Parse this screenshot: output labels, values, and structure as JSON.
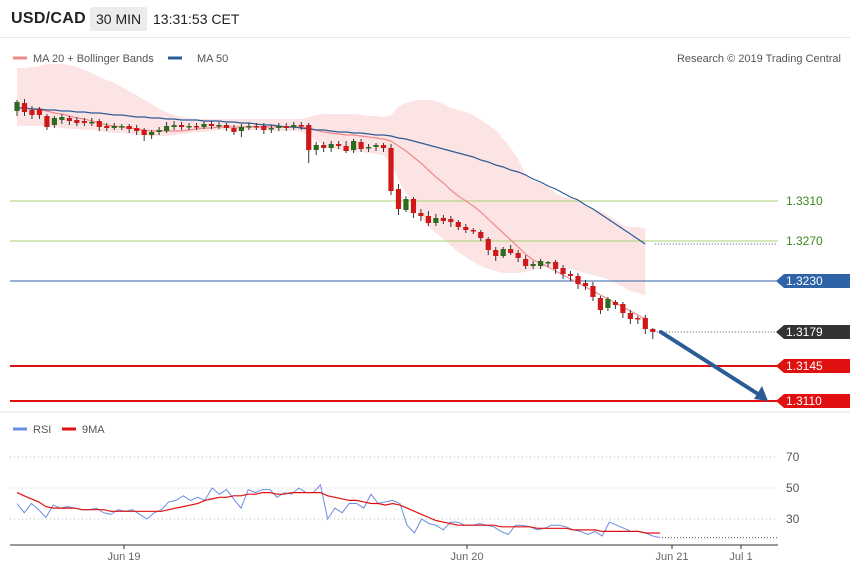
{
  "header": {
    "symbol": "USD/CAD",
    "interval": "30 MIN",
    "time": "13:31:53 CET"
  },
  "colors": {
    "bull": "#2e6b1f",
    "bear": "#d01818",
    "ma20": "#f08a8a",
    "band": "#fde4e4",
    "ma50": "#2c5b99",
    "resistance": "#a8cf72",
    "pivot": "#2e63a8",
    "support": "#e01010",
    "current": "#333333",
    "rsi": "#6a8ee0",
    "rsi_ma": "#e01010",
    "arrow": "#2b5c98"
  },
  "icons": {
    "ma20_legend": "salmon-line-icon",
    "ma50_legend": "blue-line-icon",
    "rsi_legend": "blue-line-icon",
    "rsi_ma_legend": "red-line-icon"
  },
  "chart_data": [
    {
      "type": "candlestick",
      "legend": [
        {
          "name": "MA 20 + Bollinger Bands"
        },
        {
          "name": "MA 50"
        }
      ],
      "credit": "Research © 2019 Trading Central",
      "levels": [
        {
          "value": 1.331,
          "label": "1.3310",
          "kind": "resistance"
        },
        {
          "value": 1.327,
          "label": "1.3270",
          "kind": "resistance"
        },
        {
          "value": 1.323,
          "label": "1.3230",
          "kind": "pivot"
        },
        {
          "value": 1.3179,
          "label": "1.3179",
          "kind": "current"
        },
        {
          "value": 1.3145,
          "label": "1.3145",
          "kind": "support"
        },
        {
          "value": 1.311,
          "label": "1.3110",
          "kind": "support"
        }
      ],
      "x_labels": [
        "Jun 19",
        "Jun 20",
        "Jun 21",
        "Jul 1"
      ],
      "projection": {
        "from": 1.3179,
        "to": 1.311
      },
      "candles": [
        [
          1.34,
          1.3409,
          1.3395,
          1.3411
        ],
        [
          1.3408,
          1.3399,
          1.3395,
          1.3412
        ],
        [
          1.3401,
          1.3396,
          1.3392,
          1.3405
        ],
        [
          1.3402,
          1.3396,
          1.3392,
          1.3404
        ],
        [
          1.3395,
          1.3384,
          1.3381,
          1.3397
        ],
        [
          1.3386,
          1.3393,
          1.3383,
          1.3395
        ],
        [
          1.3391,
          1.3394,
          1.3387,
          1.3397
        ],
        [
          1.3393,
          1.339,
          1.3386,
          1.3395
        ],
        [
          1.3391,
          1.3388,
          1.3385,
          1.3394
        ],
        [
          1.339,
          1.3388,
          1.3385,
          1.3393
        ],
        [
          1.3388,
          1.3389,
          1.3385,
          1.3393
        ],
        [
          1.339,
          1.3384,
          1.338,
          1.3392
        ],
        [
          1.3385,
          1.3383,
          1.338,
          1.3388
        ],
        [
          1.3383,
          1.3385,
          1.3381,
          1.3388
        ],
        [
          1.3384,
          1.3385,
          1.3381,
          1.3387
        ],
        [
          1.3385,
          1.3382,
          1.3378,
          1.3387
        ],
        [
          1.3383,
          1.338,
          1.3376,
          1.3386
        ],
        [
          1.3381,
          1.3376,
          1.337,
          1.3383
        ],
        [
          1.3376,
          1.3379,
          1.3372,
          1.3381
        ],
        [
          1.3379,
          1.3381,
          1.3376,
          1.3384
        ],
        [
          1.338,
          1.3385,
          1.3378,
          1.3389
        ],
        [
          1.3384,
          1.3386,
          1.3381,
          1.339
        ],
        [
          1.3386,
          1.3384,
          1.3381,
          1.3389
        ],
        [
          1.3384,
          1.3385,
          1.3381,
          1.3388
        ],
        [
          1.3385,
          1.3384,
          1.3381,
          1.3388
        ],
        [
          1.3384,
          1.3387,
          1.3382,
          1.339
        ],
        [
          1.3387,
          1.3385,
          1.3382,
          1.339
        ],
        [
          1.3385,
          1.3386,
          1.3382,
          1.3389
        ],
        [
          1.3386,
          1.3383,
          1.338,
          1.3388
        ],
        [
          1.3383,
          1.3379,
          1.3376,
          1.3386
        ],
        [
          1.338,
          1.3384,
          1.3374,
          1.3387
        ],
        [
          1.3384,
          1.3385,
          1.3381,
          1.3388
        ],
        [
          1.3385,
          1.3384,
          1.3381,
          1.3388
        ],
        [
          1.3385,
          1.3381,
          1.3377,
          1.3388
        ],
        [
          1.3382,
          1.3383,
          1.3378,
          1.3386
        ],
        [
          1.3383,
          1.3385,
          1.338,
          1.3388
        ],
        [
          1.3385,
          1.3383,
          1.338,
          1.3388
        ],
        [
          1.3384,
          1.3386,
          1.3381,
          1.3389
        ],
        [
          1.3386,
          1.3385,
          1.3381,
          1.3389
        ],
        [
          1.3386,
          1.3361,
          1.3348,
          1.3388
        ],
        [
          1.3361,
          1.3366,
          1.3356,
          1.3369
        ],
        [
          1.3366,
          1.3363,
          1.3359,
          1.3369
        ],
        [
          1.3363,
          1.3367,
          1.3359,
          1.337
        ],
        [
          1.3367,
          1.3365,
          1.3362,
          1.337
        ],
        [
          1.3365,
          1.336,
          1.3358,
          1.337
        ],
        [
          1.3361,
          1.337,
          1.3358,
          1.3372
        ],
        [
          1.3369,
          1.3362,
          1.3359,
          1.3372
        ],
        [
          1.3363,
          1.3364,
          1.3359,
          1.3367
        ],
        [
          1.3364,
          1.3366,
          1.336,
          1.3368
        ],
        [
          1.3366,
          1.3363,
          1.3359,
          1.3368
        ],
        [
          1.3363,
          1.332,
          1.3316,
          1.3367
        ],
        [
          1.3322,
          1.3302,
          1.3296,
          1.3327
        ],
        [
          1.3301,
          1.3312,
          1.3299,
          1.3315
        ],
        [
          1.3312,
          1.3298,
          1.3293,
          1.3314
        ],
        [
          1.3298,
          1.3295,
          1.329,
          1.3302
        ],
        [
          1.3295,
          1.3288,
          1.3285,
          1.33
        ],
        [
          1.3288,
          1.3293,
          1.3285,
          1.3297
        ],
        [
          1.3293,
          1.329,
          1.3287,
          1.3296
        ],
        [
          1.3292,
          1.3289,
          1.3284,
          1.3295
        ],
        [
          1.3289,
          1.3284,
          1.3281,
          1.3291
        ],
        [
          1.3284,
          1.3281,
          1.3278,
          1.3287
        ],
        [
          1.3281,
          1.328,
          1.3277,
          1.3283
        ],
        [
          1.3279,
          1.3273,
          1.327,
          1.3281
        ],
        [
          1.3272,
          1.3261,
          1.3256,
          1.3274
        ],
        [
          1.3261,
          1.3255,
          1.325,
          1.3264
        ],
        [
          1.3255,
          1.3262,
          1.3253,
          1.3264
        ],
        [
          1.3262,
          1.3258,
          1.3256,
          1.3266
        ],
        [
          1.3258,
          1.3253,
          1.3249,
          1.3261
        ],
        [
          1.3252,
          1.3245,
          1.3242,
          1.3256
        ],
        [
          1.3245,
          1.3247,
          1.3242,
          1.325
        ],
        [
          1.3245,
          1.325,
          1.3242,
          1.3252
        ],
        [
          1.3248,
          1.3249,
          1.3244,
          1.325
        ],
        [
          1.3249,
          1.3242,
          1.3237,
          1.3251
        ],
        [
          1.3243,
          1.3237,
          1.3232,
          1.3246
        ],
        [
          1.3237,
          1.3235,
          1.323,
          1.324
        ],
        [
          1.3235,
          1.3227,
          1.3222,
          1.3238
        ],
        [
          1.3228,
          1.3225,
          1.3221,
          1.3231
        ],
        [
          1.3225,
          1.3214,
          1.321,
          1.3229
        ],
        [
          1.3213,
          1.3201,
          1.3197,
          1.3215
        ],
        [
          1.3203,
          1.3212,
          1.32,
          1.3214
        ],
        [
          1.3209,
          1.3206,
          1.3202,
          1.3211
        ],
        [
          1.3207,
          1.3198,
          1.3193,
          1.3209
        ],
        [
          1.3198,
          1.3192,
          1.3187,
          1.3201
        ],
        [
          1.3193,
          1.3192,
          1.3187,
          1.3195
        ],
        [
          1.3193,
          1.3182,
          1.3177,
          1.3196
        ],
        [
          1.3182,
          1.3179,
          1.3172,
          1.3183
        ]
      ],
      "ma20": [
        1.3403,
        1.3403,
        1.3402,
        1.3401,
        1.34,
        1.3398,
        1.3397,
        1.3395,
        1.3393,
        1.3392,
        1.339,
        1.3388,
        1.3386,
        1.3385,
        1.3384,
        1.3383,
        1.3382,
        1.3381,
        1.338,
        1.338,
        1.338,
        1.338,
        1.338,
        1.3381,
        1.3382,
        1.3383,
        1.3383,
        1.3384,
        1.3384,
        1.3384,
        1.3384,
        1.3384,
        1.3384,
        1.3384,
        1.3384,
        1.3384,
        1.3384,
        1.3384,
        1.3384,
        1.3383,
        1.3381,
        1.3379,
        1.3378,
        1.3377,
        1.3376,
        1.3376,
        1.3375,
        1.3374,
        1.3373,
        1.3372,
        1.337,
        1.3365,
        1.336,
        1.3354,
        1.3348,
        1.3341,
        1.3334,
        1.3328,
        1.3321,
        1.3315,
        1.331,
        1.3305,
        1.3299,
        1.3292,
        1.3285,
        1.3278,
        1.3271,
        1.3264,
        1.3257,
        1.3251,
        1.3248,
        1.3244,
        1.324,
        1.3236,
        1.3232,
        1.3228,
        1.3224,
        1.322,
        1.3216,
        1.3212,
        1.3208,
        1.3204,
        1.32,
        1.3196,
        1.3192
      ],
      "bb_upper": [
        1.3443,
        1.3443,
        1.3444,
        1.3445,
        1.3447,
        1.3447,
        1.3447,
        1.3446,
        1.3444,
        1.3441,
        1.3438,
        1.3434,
        1.3431,
        1.3428,
        1.3424,
        1.342,
        1.3416,
        1.3411,
        1.3407,
        1.3402,
        1.3399,
        1.3396,
        1.3394,
        1.3393,
        1.3392,
        1.3392,
        1.3392,
        1.3392,
        1.3392,
        1.3392,
        1.3392,
        1.3392,
        1.3392,
        1.3392,
        1.3392,
        1.3392,
        1.3392,
        1.3392,
        1.3392,
        1.3394,
        1.3396,
        1.3397,
        1.3397,
        1.3397,
        1.3397,
        1.3397,
        1.3396,
        1.3395,
        1.3395,
        1.3394,
        1.3396,
        1.3404,
        1.3408,
        1.341,
        1.3411,
        1.3411,
        1.341,
        1.3407,
        1.3403,
        1.3401,
        1.3399,
        1.3396,
        1.3391,
        1.3386,
        1.3381,
        1.3372,
        1.3363,
        1.3352,
        1.3336,
        1.333,
        1.3328,
        1.3324,
        1.3318,
        1.3314,
        1.3313,
        1.331,
        1.3306,
        1.3302,
        1.33,
        1.3296,
        1.3291,
        1.3286,
        1.3284,
        1.3284,
        1.3283
      ],
      "bb_lower": [
        1.3385,
        1.3385,
        1.3385,
        1.3385,
        1.3385,
        1.3384,
        1.3383,
        1.3382,
        1.3382,
        1.3381,
        1.3381,
        1.338,
        1.3379,
        1.3378,
        1.3378,
        1.3377,
        1.3376,
        1.3376,
        1.3375,
        1.3375,
        1.3375,
        1.3376,
        1.3377,
        1.3378,
        1.3379,
        1.3379,
        1.338,
        1.3381,
        1.3381,
        1.3381,
        1.3381,
        1.3381,
        1.3381,
        1.3381,
        1.338,
        1.338,
        1.338,
        1.338,
        1.3379,
        1.3376,
        1.337,
        1.3366,
        1.3363,
        1.3361,
        1.336,
        1.3359,
        1.3359,
        1.3358,
        1.3357,
        1.3356,
        1.3348,
        1.3331,
        1.3318,
        1.3306,
        1.3294,
        1.3284,
        1.3278,
        1.3272,
        1.3265,
        1.3259,
        1.3254,
        1.3249,
        1.3245,
        1.3242,
        1.324,
        1.3238,
        1.3238,
        1.3238,
        1.3239,
        1.3241,
        1.3243,
        1.3244,
        1.3244,
        1.3243,
        1.3242,
        1.324,
        1.3238,
        1.3236,
        1.3234,
        1.3232,
        1.3228,
        1.3224,
        1.322,
        1.3218,
        1.3216
      ],
      "ma50": [
        1.3403,
        1.3403,
        1.3402,
        1.3402,
        1.3401,
        1.3401,
        1.34,
        1.34,
        1.3399,
        1.3399,
        1.3398,
        1.3398,
        1.3397,
        1.3396,
        1.3396,
        1.3395,
        1.3394,
        1.3394,
        1.3393,
        1.3393,
        1.3392,
        1.3392,
        1.3391,
        1.3391,
        1.3391,
        1.339,
        1.339,
        1.339,
        1.3389,
        1.3389,
        1.3388,
        1.3388,
        1.3387,
        1.3386,
        1.3386,
        1.3385,
        1.3384,
        1.3384,
        1.3383,
        1.3382,
        1.3381,
        1.3381,
        1.338,
        1.3379,
        1.3379,
        1.3378,
        1.3378,
        1.3377,
        1.3376,
        1.3376,
        1.3375,
        1.3373,
        1.3372,
        1.337,
        1.3368,
        1.3366,
        1.3364,
        1.3362,
        1.336,
        1.3358,
        1.3356,
        1.3354,
        1.3351,
        1.3349,
        1.3346,
        1.3344,
        1.3341,
        1.3339,
        1.3336,
        1.3332,
        1.3329,
        1.3325,
        1.3322,
        1.3318,
        1.3314,
        1.3311,
        1.3306,
        1.3302,
        1.3297,
        1.3292,
        1.3287,
        1.3282,
        1.3277,
        1.3272,
        1.3267
      ]
    },
    {
      "type": "line",
      "legend": [
        {
          "name": "RSI"
        },
        {
          "name": "9MA"
        }
      ],
      "yticks": [
        30,
        50,
        70
      ],
      "ylim": [
        10,
        78
      ],
      "rsi": [
        40,
        34,
        40,
        36,
        31,
        39,
        37,
        38,
        37,
        36,
        36,
        37,
        34,
        33,
        36,
        35,
        36,
        33,
        30,
        34,
        36,
        41,
        42,
        45,
        42,
        44,
        42,
        50,
        46,
        49,
        43,
        37,
        49,
        47,
        49,
        49,
        44,
        47,
        46,
        50,
        47,
        47,
        52,
        30,
        37,
        34,
        40,
        40,
        37,
        46,
        40,
        41,
        42,
        40,
        26,
        21,
        30,
        27,
        26,
        23,
        28,
        28,
        26,
        26,
        27,
        26,
        25,
        22,
        20,
        26,
        26,
        25,
        23,
        24,
        26,
        26,
        25,
        23,
        22,
        20,
        22,
        19,
        28,
        26,
        24,
        22,
        22,
        21,
        19,
        18
      ],
      "rsi_ma": [
        47,
        45,
        43,
        41,
        38,
        37,
        37,
        37,
        37,
        36,
        36,
        36,
        36,
        35,
        35,
        35,
        35,
        35,
        35,
        35,
        35,
        36,
        37,
        38,
        39,
        40,
        42,
        43,
        44,
        44,
        45,
        45,
        46,
        46,
        47,
        47,
        46,
        46,
        47,
        47,
        47,
        47,
        47,
        45,
        44,
        43,
        42,
        42,
        41,
        40,
        40,
        39,
        40,
        39,
        37,
        35,
        33,
        31,
        29,
        28,
        27,
        26,
        26,
        26,
        26,
        26,
        26,
        25,
        25,
        25,
        25,
        25,
        24,
        24,
        24,
        24,
        24,
        23,
        23,
        23,
        23,
        22,
        22,
        22,
        22,
        22,
        22,
        21,
        21,
        21
      ]
    }
  ]
}
